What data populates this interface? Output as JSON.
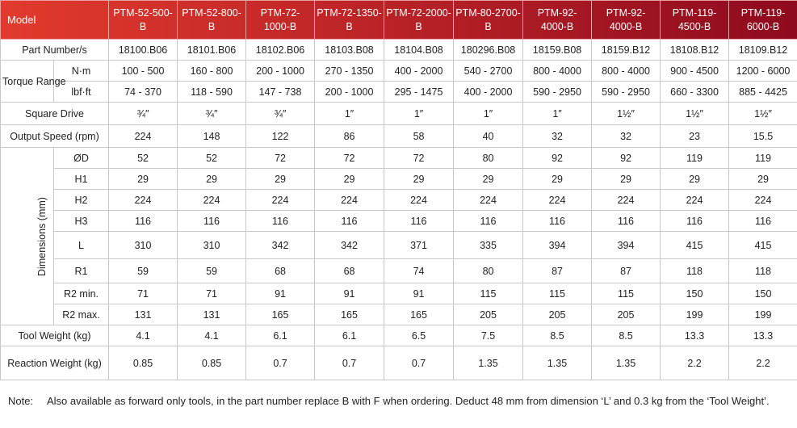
{
  "header": {
    "model_label": "Model",
    "models": [
      "PTM-52-500-B",
      "PTM-52-800-B",
      "PTM-72-1000-B",
      "PTM-72-1350-B",
      "PTM-72-2000-B",
      "PTM-80-2700-B",
      "PTM-92-4000-B",
      "PTM-92-4000-B",
      "PTM-119-4500-B",
      "PTM-119-6000-B"
    ]
  },
  "colors": {
    "header_gradient_start": "#e23a2e",
    "header_gradient_end": "#8e0a1e",
    "border": "#c9c9c9"
  },
  "rows": {
    "part_number": {
      "label": "Part Number/s",
      "values": [
        "18100.B06",
        "18101.B06",
        "18102.B06",
        "18103.B08",
        "18104.B08",
        "180296.B08",
        "18159.B08",
        "18159.B12",
        "18108.B12",
        "18109.B12"
      ]
    },
    "torque": {
      "label": "Torque Range",
      "nm": {
        "unit": "N·m",
        "values": [
          "100 - 500",
          "160 - 800",
          "200 - 1000",
          "270 - 1350",
          "400 - 2000",
          "540 - 2700",
          "800 - 4000",
          "800 - 4000",
          "900 - 4500",
          "1200 - 6000"
        ]
      },
      "lbf": {
        "unit": "lbf·ft",
        "values": [
          "74 - 370",
          "118 - 590",
          "147 - 738",
          "200 - 1000",
          "295 - 1475",
          "400 - 2000",
          "590 - 2950",
          "590 - 2950",
          "660 - 3300",
          "885 - 4425"
        ]
      }
    },
    "square_drive": {
      "label": "Square Drive",
      "values": [
        "¾″",
        "¾″",
        "¾″",
        "1″",
        "1″",
        "1″",
        "1″",
        "1½″",
        "1½″",
        "1½″"
      ]
    },
    "output_speed": {
      "label": "Output Speed (rpm)",
      "values": [
        "224",
        "148",
        "122",
        "86",
        "58",
        "40",
        "32",
        "32",
        "23",
        "15.5"
      ]
    },
    "dimensions": {
      "label": "Dimensions (mm)",
      "od": {
        "name": "ØD",
        "values": [
          "52",
          "52",
          "72",
          "72",
          "72",
          "80",
          "92",
          "92",
          "119",
          "119"
        ]
      },
      "h1": {
        "name": "H1",
        "values": [
          "29",
          "29",
          "29",
          "29",
          "29",
          "29",
          "29",
          "29",
          "29",
          "29"
        ]
      },
      "h2": {
        "name": "H2",
        "values": [
          "224",
          "224",
          "224",
          "224",
          "224",
          "224",
          "224",
          "224",
          "224",
          "224"
        ]
      },
      "h3": {
        "name": "H3",
        "values": [
          "116",
          "116",
          "116",
          "116",
          "116",
          "116",
          "116",
          "116",
          "116",
          "116"
        ]
      },
      "l": {
        "name": "L",
        "values": [
          "310",
          "310",
          "342",
          "342",
          "371",
          "335",
          "394",
          "394",
          "415",
          "415"
        ]
      },
      "r1": {
        "name": "R1",
        "values": [
          "59",
          "59",
          "68",
          "68",
          "74",
          "80",
          "87",
          "87",
          "118",
          "118"
        ]
      },
      "r2min": {
        "name": "R2 min.",
        "values": [
          "71",
          "71",
          "91",
          "91",
          "91",
          "115",
          "115",
          "115",
          "150",
          "150"
        ]
      },
      "r2max": {
        "name": "R2 max.",
        "values": [
          "131",
          "131",
          "165",
          "165",
          "165",
          "205",
          "205",
          "205",
          "199",
          "199"
        ]
      }
    },
    "tool_weight": {
      "label": "Tool Weight (kg)",
      "values": [
        "4.1",
        "4.1",
        "6.1",
        "6.1",
        "6.5",
        "7.5",
        "8.5",
        "8.5",
        "13.3",
        "13.3"
      ]
    },
    "reaction_weight": {
      "label": "Reaction Weight (kg)",
      "values": [
        "0.85",
        "0.85",
        "0.7",
        "0.7",
        "0.7",
        "1.35",
        "1.35",
        "1.35",
        "2.2",
        "2.2"
      ]
    }
  },
  "note": {
    "label": "Note:",
    "text": "Also available as forward only tools, in the part number replace B with F when ordering. Deduct 48 mm from dimension ‘L’ and 0.3 kg from the ‘Tool Weight’."
  }
}
